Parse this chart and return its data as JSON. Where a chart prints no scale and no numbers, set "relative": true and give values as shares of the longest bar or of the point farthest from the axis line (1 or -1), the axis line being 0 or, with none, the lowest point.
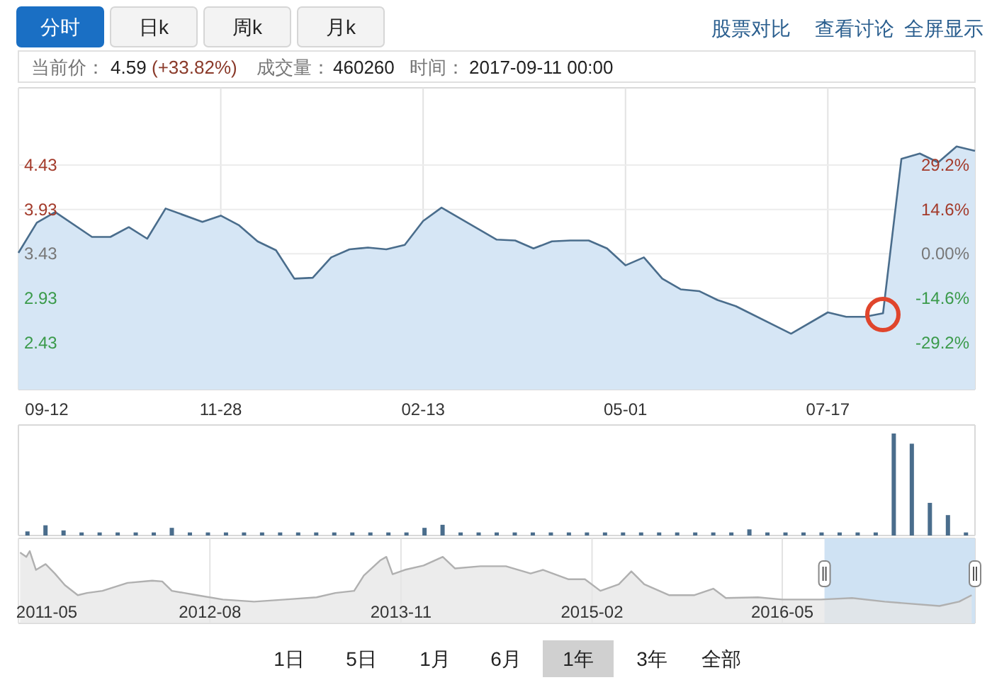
{
  "chart_data": [
    {
      "type": "area",
      "color": "#4a6d8c",
      "grid": true,
      "x": [
        "2016-09-12",
        "2016-09-19",
        "2016-09-26",
        "2016-10-10",
        "2016-10-17",
        "2016-10-24",
        "2016-10-31",
        "2016-11-07",
        "2016-11-21",
        "2016-11-28",
        "2016-12-05",
        "2016-12-12",
        "2016-12-19",
        "2016-12-26",
        "2017-01-02",
        "2017-01-09",
        "2017-01-16",
        "2017-01-23",
        "2017-01-30",
        "2017-02-06",
        "2017-02-13",
        "2017-02-20",
        "2017-03-13",
        "2017-03-20",
        "2017-03-27",
        "2017-04-03",
        "2017-04-10",
        "2017-04-17",
        "2017-04-24",
        "2017-05-01",
        "2017-05-08",
        "2017-05-15",
        "2017-05-22",
        "2017-05-29",
        "2017-06-05",
        "2017-06-12",
        "2017-07-03",
        "2017-07-17",
        "2017-07-24",
        "2017-07-31",
        "2017-08-07",
        "2017-08-14",
        "2017-08-21",
        "2017-08-28",
        "2017-09-04",
        "2017-09-11"
      ],
      "values": [
        3.44,
        3.78,
        3.9,
        3.62,
        3.62,
        3.73,
        3.6,
        3.94,
        3.79,
        3.86,
        3.75,
        3.57,
        3.47,
        3.15,
        3.16,
        3.39,
        3.48,
        3.5,
        3.48,
        3.53,
        3.8,
        3.95,
        3.59,
        3.58,
        3.49,
        3.57,
        3.58,
        3.58,
        3.49,
        3.3,
        3.39,
        3.15,
        3.03,
        3.01,
        2.91,
        2.84,
        2.53,
        2.77,
        2.72,
        2.72,
        2.76,
        4.5,
        4.56,
        4.46,
        4.64,
        4.59
      ],
      "xlim": [
        "2016-09-12",
        "2017-09-11"
      ],
      "xticks": [
        {
          "value": "2016-09-12",
          "label": "09-12"
        },
        {
          "value": "2016-11-28",
          "label": "11-28"
        },
        {
          "value": "2017-02-13",
          "label": "02-13"
        },
        {
          "value": "2017-05-01",
          "label": "05-01"
        },
        {
          "value": "2017-07-17",
          "label": "07-17"
        }
      ],
      "ylim": [
        1.9,
        5.3
      ],
      "yticks": [
        2.43,
        2.93,
        3.43,
        3.93,
        4.43
      ],
      "y2lim": [
        -44.61,
        54.52
      ],
      "y2ticks": [
        {
          "value": -29.2,
          "label": "-29.2%"
        },
        {
          "value": -14.6,
          "label": "-14.6%"
        },
        {
          "value": 0,
          "label": "0.00%"
        },
        {
          "value": 14.6,
          "label": "14.6%"
        },
        {
          "value": 29.2,
          "label": "29.2%"
        }
      ],
      "annotations": [
        "分时",
        "日k",
        "周k",
        "月k",
        "股票对比",
        "查看讨论",
        "全屏显示",
        "当前价：",
        "4.59",
        "(+33.82%)",
        "成交量：",
        "460260",
        "时间：",
        "2017-09-11 00:00",
        "1日",
        "5日",
        "1月",
        "6月",
        "1年",
        "3年",
        "全部"
      ]
    },
    {
      "type": "bar",
      "color": "#4a6d8c",
      "relative": true,
      "categories": [
        null,
        null,
        null,
        null,
        null,
        null,
        null,
        null,
        null,
        null,
        null,
        null,
        null,
        null,
        null,
        null,
        null,
        null,
        null,
        null,
        null,
        null,
        null,
        null,
        null,
        null,
        null,
        null,
        null,
        null,
        null,
        null,
        null,
        null,
        null,
        null,
        null,
        null,
        null,
        null,
        null,
        null,
        null,
        null,
        null,
        null,
        null,
        null,
        null,
        null,
        null,
        null,
        null
      ],
      "values": [
        0.04,
        0.1,
        0.05,
        0.03,
        0.03,
        0.03,
        0.03,
        0.03,
        0.075,
        0.03,
        0.03,
        0.03,
        0.03,
        0.03,
        0.03,
        0.03,
        0.03,
        0.03,
        0.03,
        0.03,
        0.03,
        0.03,
        0.075,
        0.105,
        0.03,
        0.03,
        0.03,
        0.03,
        0.03,
        0.03,
        0.03,
        0.03,
        0.03,
        0.03,
        0.03,
        0.03,
        0.03,
        0.03,
        0.03,
        0.03,
        0.06,
        0.03,
        0.03,
        0.03,
        0.03,
        0.03,
        0.03,
        0.03,
        1.0,
        0.9,
        0.32,
        0.2,
        0.03
      ]
    },
    {
      "type": "area",
      "color": "#b0b0b0",
      "relative": true,
      "grid": "x",
      "x": [
        "2011-05-05",
        "2011-05-20",
        "2011-05-28",
        "2011-06-12",
        "2011-07-05",
        "2011-07-27",
        "2011-08-20",
        "2011-09-20",
        "2011-10-12",
        "2011-11-18",
        "2012-01-17",
        "2012-03-16",
        "2012-04-09",
        "2012-05-02",
        "2012-06-01",
        "2012-07-01",
        "2012-09-01",
        "2012-11-15",
        "2013-01-28",
        "2013-04-13",
        "2013-05-28",
        "2013-07-12",
        "2013-08-04",
        "2013-09-12",
        "2013-09-27",
        "2013-10-12",
        "2013-11-10",
        "2013-12-25",
        "2014-02-09",
        "2014-03-10",
        "2014-05-10",
        "2014-07-10",
        "2014-09-07",
        "2014-10-07",
        "2014-12-07",
        "2015-01-15",
        "2015-02-21",
        "2015-04-06",
        "2015-05-06",
        "2015-06-06",
        "2015-08-04",
        "2015-10-04",
        "2015-11-18",
        "2015-12-18",
        "2016-03-04",
        "2016-05-01",
        "2016-08-01",
        "2016-10-15",
        "2017-01-01",
        "2017-05-12",
        "2017-06-28",
        "2017-07-28"
      ],
      "values": [
        0.98,
        0.92,
        1.0,
        0.74,
        0.82,
        0.69,
        0.53,
        0.39,
        0.42,
        0.45,
        0.56,
        0.59,
        0.58,
        0.45,
        0.42,
        0.39,
        0.33,
        0.3,
        0.33,
        0.36,
        0.42,
        0.45,
        0.66,
        0.87,
        0.92,
        0.68,
        0.74,
        0.8,
        0.92,
        0.76,
        0.79,
        0.79,
        0.69,
        0.74,
        0.61,
        0.61,
        0.45,
        0.54,
        0.72,
        0.54,
        0.39,
        0.39,
        0.48,
        0.35,
        0.36,
        0.33,
        0.33,
        0.35,
        0.3,
        0.24,
        0.3,
        0.39
      ],
      "xlim": [
        "2011-05-01",
        "2017-08-05"
      ],
      "xticks": [
        {
          "value": "2011-05",
          "label": "2011-05"
        },
        {
          "value": "2012-08",
          "label": "2012-08"
        },
        {
          "value": "2013-11",
          "label": "2013-11"
        },
        {
          "value": "2015-02",
          "label": "2015-02"
        },
        {
          "value": "2016-05",
          "label": "2016-05"
        }
      ],
      "bands": [
        {
          "axis": "x",
          "from": "2016-08-10",
          "to": "2017-08-05",
          "color": "#cfe2f3"
        }
      ]
    }
  ]
}
